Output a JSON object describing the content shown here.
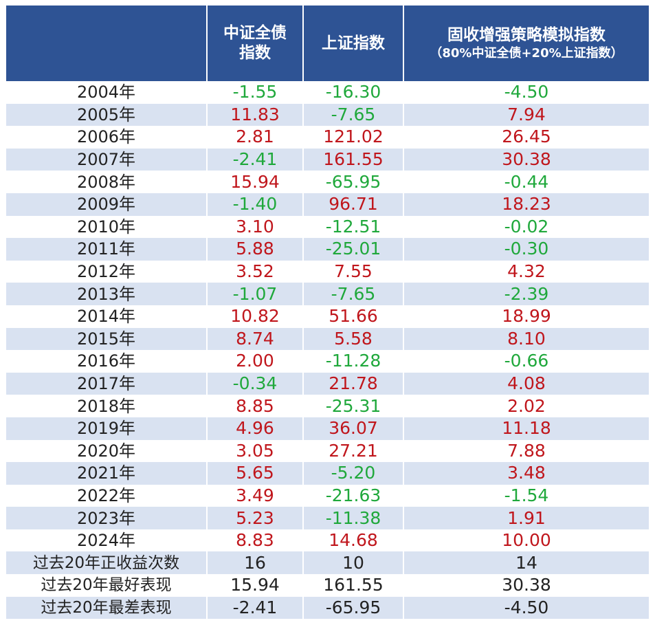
{
  "colors": {
    "header_bg": "#2E5394",
    "stripe": "#D9E2F1",
    "positive": "#C0161C",
    "negative": "#1FA83B"
  },
  "header": {
    "col0": "",
    "col1_line1": "中证全债",
    "col1_line2": "指数",
    "col2": "上证指数",
    "col3_line1": "固收增强策略模拟指数",
    "col3_line2": "（80%中证全债+20%上证指数）"
  },
  "rows": [
    {
      "year": "2004年",
      "v1": "-1.55",
      "v2": "-16.30",
      "v3": "-4.50"
    },
    {
      "year": "2005年",
      "v1": "11.83",
      "v2": "-7.65",
      "v3": "7.94"
    },
    {
      "year": "2006年",
      "v1": "2.81",
      "v2": "121.02",
      "v3": "26.45"
    },
    {
      "year": "2007年",
      "v1": "-2.41",
      "v2": "161.55",
      "v3": "30.38"
    },
    {
      "year": "2008年",
      "v1": "15.94",
      "v2": "-65.95",
      "v3": "-0.44"
    },
    {
      "year": "2009年",
      "v1": "-1.40",
      "v2": "96.71",
      "v3": "18.23"
    },
    {
      "year": "2010年",
      "v1": "3.10",
      "v2": "-12.51",
      "v3": "-0.02"
    },
    {
      "year": "2011年",
      "v1": "5.88",
      "v2": "-25.01",
      "v3": "-0.30"
    },
    {
      "year": "2012年",
      "v1": "3.52",
      "v2": "7.55",
      "v3": "4.32"
    },
    {
      "year": "2013年",
      "v1": "-1.07",
      "v2": "-7.65",
      "v3": "-2.39"
    },
    {
      "year": "2014年",
      "v1": "10.82",
      "v2": "51.66",
      "v3": "18.99"
    },
    {
      "year": "2015年",
      "v1": "8.74",
      "v2": "5.58",
      "v3": "8.10"
    },
    {
      "year": "2016年",
      "v1": "2.00",
      "v2": "-11.28",
      "v3": "-0.66"
    },
    {
      "year": "2017年",
      "v1": "-0.34",
      "v2": "21.78",
      "v3": "4.08"
    },
    {
      "year": "2018年",
      "v1": "8.85",
      "v2": "-25.31",
      "v3": "2.02"
    },
    {
      "year": "2019年",
      "v1": "4.96",
      "v2": "36.07",
      "v3": "11.18"
    },
    {
      "year": "2020年",
      "v1": "3.05",
      "v2": "27.21",
      "v3": "7.88"
    },
    {
      "year": "2021年",
      "v1": "5.65",
      "v2": "-5.20",
      "v3": "3.48"
    },
    {
      "year": "2022年",
      "v1": "3.49",
      "v2": "-21.63",
      "v3": "-1.54"
    },
    {
      "year": "2023年",
      "v1": "5.23",
      "v2": "-11.38",
      "v3": "1.91"
    },
    {
      "year": "2024年",
      "v1": "8.83",
      "v2": "14.68",
      "v3": "10.00"
    }
  ],
  "summary": [
    {
      "label": "过去20年正收益次数",
      "v1": "16",
      "v2": "10",
      "v3": "14"
    },
    {
      "label": "过去20年最好表现",
      "v1": "15.94",
      "v2": "161.55",
      "v3": "30.38"
    },
    {
      "label": "过去20年最差表现",
      "v1": "-2.41",
      "v2": "-65.95",
      "v3": "-4.50"
    }
  ]
}
